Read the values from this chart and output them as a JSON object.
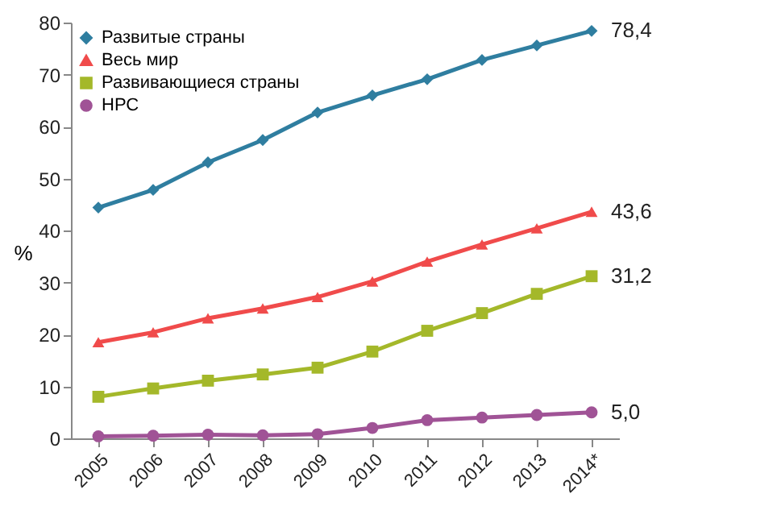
{
  "chart_data": {
    "type": "line",
    "ylabel": "%",
    "categories": [
      "2005",
      "2006",
      "2007",
      "2008",
      "2009",
      "2010",
      "2011",
      "2012",
      "2013",
      "2014*"
    ],
    "ylim": [
      0,
      80
    ],
    "yticks": [
      0,
      10,
      20,
      30,
      40,
      50,
      60,
      70,
      80
    ],
    "grid": false,
    "legend": "top left",
    "line_style": "solid",
    "series": [
      {
        "name": "Развитые страны",
        "color": "#2f7ea0",
        "marker": "diamond",
        "values": [
          44.4,
          47.8,
          53.1,
          57.4,
          62.7,
          66.0,
          69.1,
          72.8,
          75.6,
          78.4
        ],
        "value_labels": [
          null,
          null,
          null,
          null,
          null,
          null,
          null,
          null,
          null,
          "78,4"
        ]
      },
      {
        "name": "Весь мир",
        "color": "#f04b4b",
        "marker": "triangle",
        "values": [
          18.5,
          20.4,
          23.1,
          25.0,
          27.2,
          30.2,
          34.0,
          37.3,
          40.4,
          43.6
        ],
        "value_labels": [
          null,
          null,
          null,
          null,
          null,
          null,
          null,
          null,
          null,
          "43,6"
        ]
      },
      {
        "name": "Развивающиеся страны",
        "color": "#a4b82a",
        "marker": "square",
        "values": [
          8.0,
          9.6,
          11.1,
          12.3,
          13.6,
          16.7,
          20.7,
          24.1,
          27.8,
          31.2
        ],
        "value_labels": [
          null,
          null,
          null,
          null,
          null,
          null,
          null,
          null,
          null,
          "31,2"
        ]
      },
      {
        "name": "НРС",
        "color": "#a05396",
        "marker": "circle",
        "values": [
          0.4,
          0.5,
          0.7,
          0.6,
          0.8,
          2.0,
          3.5,
          4.0,
          4.5,
          5.0
        ],
        "value_labels": [
          null,
          null,
          null,
          null,
          null,
          null,
          null,
          null,
          null,
          "5,0"
        ]
      }
    ]
  }
}
